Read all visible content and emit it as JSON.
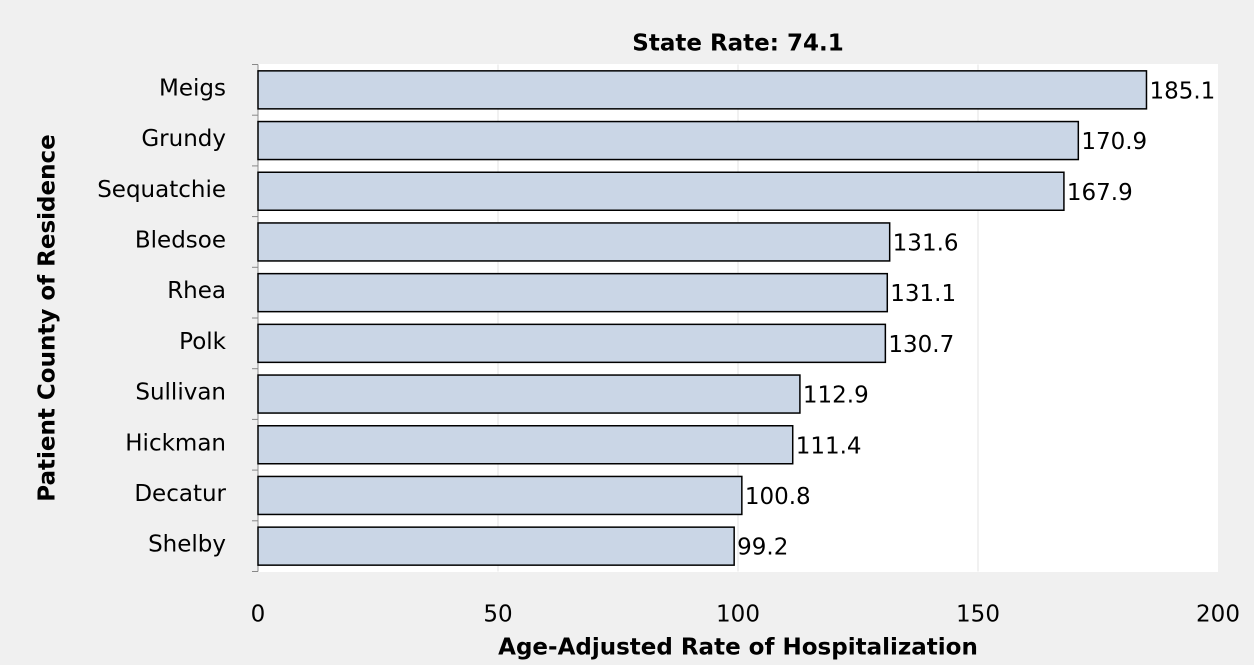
{
  "chart_data": {
    "type": "bar",
    "orientation": "horizontal",
    "title": "State Rate: 74.1",
    "x_label": "Age-Adjusted Rate of Hospitalization",
    "y_label": "Patient County of Residence",
    "categories": [
      "Meigs",
      "Grundy",
      "Sequatchie",
      "Bledsoe",
      "Rhea",
      "Polk",
      "Sullivan",
      "Hickman",
      "Decatur",
      "Shelby"
    ],
    "values": [
      185.1,
      170.9,
      167.9,
      131.6,
      131.1,
      130.7,
      112.9,
      111.4,
      100.8,
      99.2
    ],
    "color": "#cad6e6",
    "xlim": [
      0,
      200
    ],
    "xticks": [
      0,
      50,
      100,
      150,
      200
    ],
    "grid": true
  }
}
